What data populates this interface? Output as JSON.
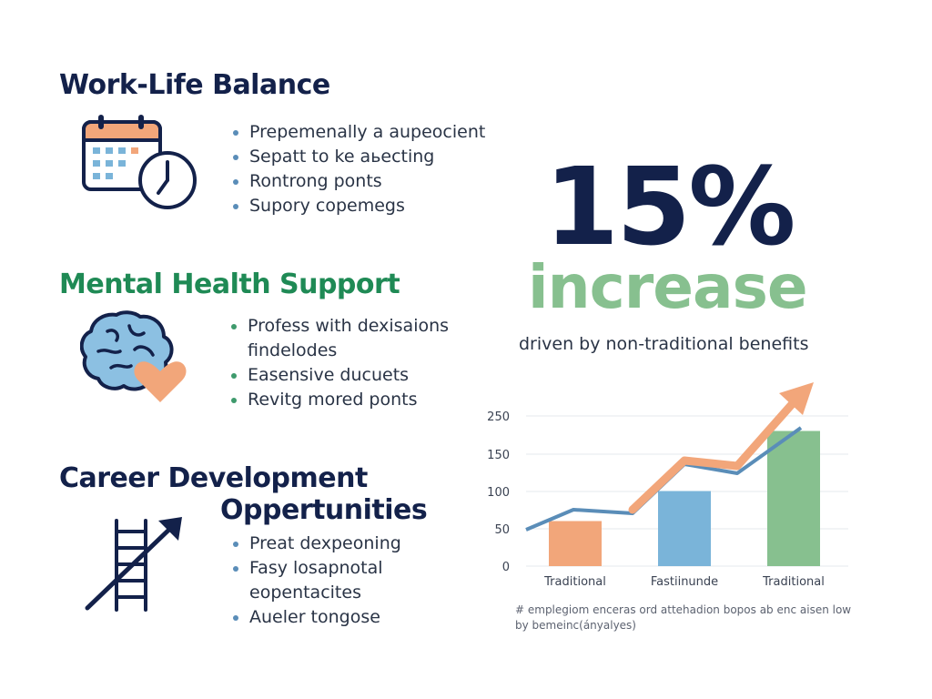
{
  "colors": {
    "navy": "#13214a",
    "green": "#1f8a55",
    "light_green": "#87c08f",
    "orange": "#f2a67a",
    "blue": "#7ab4d9",
    "bullet_blue": "#5a8db8",
    "bullet_green": "#3e9a6c"
  },
  "sections": {
    "work_life": {
      "title": "Work-Life Balance",
      "icon": "calendar-clock-icon",
      "bullets": [
        "Prepemenally a aupeocient",
        "Sepatt to ke aьecting",
        "Rontrong ponts",
        "Supory copemegs"
      ]
    },
    "mental_health": {
      "title": "Mental Health Support",
      "icon": "brain-heart-icon",
      "bullets": [
        "Profess with dexisaions findelodes",
        "Easensive ducuets",
        "Revitg mored ponts"
      ]
    },
    "career": {
      "title_line1": "Career Development",
      "title_line2": "Oppertunities",
      "icon": "ladder-arrow-icon",
      "bullets": [
        "Preat dexpeoning",
        "Fasy losapnotal eopentacites",
        "Aueler tongose"
      ]
    }
  },
  "stat": {
    "value": "15%",
    "word": "increase",
    "caption": "driven by non-traditional benefits"
  },
  "chart_data": {
    "type": "bar",
    "categories": [
      "Traditional",
      "Fastiinunde",
      "Traditional"
    ],
    "values": [
      60,
      100,
      180
    ],
    "bar_colors": [
      "#f2a67a",
      "#7ab4d9",
      "#87c08f"
    ],
    "y_ticks": [
      "0",
      "50",
      "100",
      "150",
      "250"
    ],
    "ylim": [
      0,
      200
    ],
    "trend_arrow_color": "#f2a67a",
    "note": "# emplegiom enceras ord attehadion bopos ab enc aisen low by bemeinc(ányalyes)"
  }
}
